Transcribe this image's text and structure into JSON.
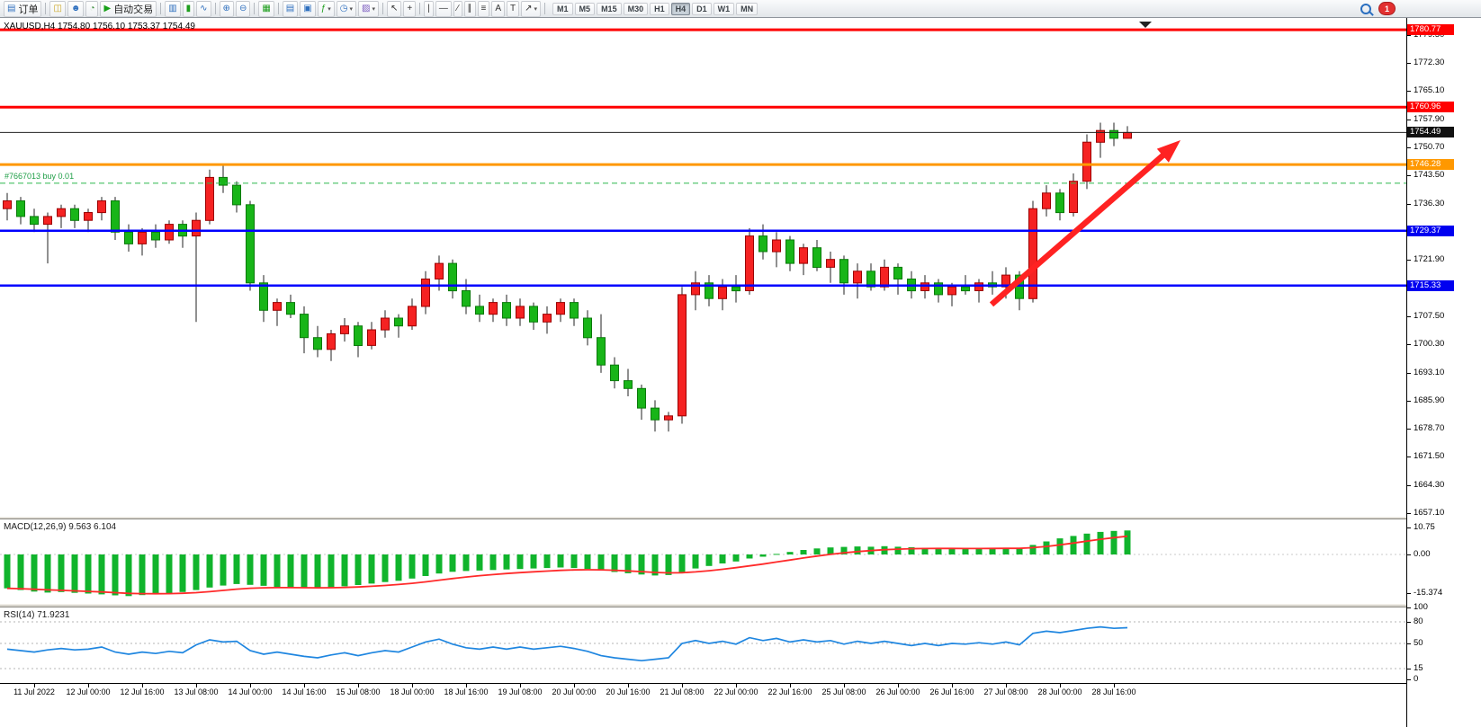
{
  "toolbar": {
    "items": [
      {
        "name": "new-order-button",
        "glyph": "▤",
        "label": "订单",
        "color": "#2e6fbe"
      },
      {
        "sep": true
      },
      {
        "name": "chart-profile-icon",
        "glyph": "◫",
        "color": "#c8a21c"
      },
      {
        "name": "market-watch-icon",
        "glyph": "☻",
        "color": "#2e6fbe"
      },
      {
        "name": "data-window-icon",
        "glyph": "◔",
        "color": "#3f8f3f"
      },
      {
        "name": "autotrading-button",
        "glyph": "▶",
        "label": "自动交易",
        "color": "#18a018"
      },
      {
        "sep": true
      },
      {
        "name": "bar-chart-icon",
        "glyph": "▥",
        "color": "#2e6fbe"
      },
      {
        "name": "candlestick-chart-icon",
        "glyph": "▮",
        "color": "#1e9e1e"
      },
      {
        "name": "line-chart-icon",
        "glyph": "∿",
        "color": "#2e6fbe"
      },
      {
        "sep": true
      },
      {
        "name": "zoom-in-icon",
        "glyph": "⊕",
        "color": "#2e6fbe"
      },
      {
        "name": "zoom-out-icon",
        "glyph": "⊖",
        "color": "#2e6fbe"
      },
      {
        "sep": true
      },
      {
        "name": "tile-windows-icon",
        "glyph": "▦",
        "color": "#1e9e1e"
      },
      {
        "sep": true
      },
      {
        "name": "arrange-charts-icon",
        "glyph": "▤",
        "color": "#2e6fbe"
      },
      {
        "name": "auto-arrange-icon",
        "glyph": "▣",
        "color": "#2e6fbe"
      },
      {
        "name": "indicators-icon",
        "glyph": "ƒ",
        "color": "#1e9e1e",
        "dropdown": true
      },
      {
        "name": "periods-icon",
        "glyph": "◷",
        "color": "#2e6fbe",
        "dropdown": true
      },
      {
        "name": "templates-icon",
        "glyph": "▨",
        "color": "#7a5abf",
        "dropdown": true
      },
      {
        "sep": true
      },
      {
        "name": "cursor-icon",
        "glyph": "↖",
        "color": "#333333"
      },
      {
        "name": "crosshair-icon",
        "glyph": "+",
        "color": "#333333"
      },
      {
        "sep": true
      },
      {
        "name": "vertical-line-icon",
        "glyph": "|",
        "color": "#333333"
      },
      {
        "name": "horizontal-line-icon",
        "glyph": "—",
        "color": "#333333"
      },
      {
        "name": "trendline-icon",
        "glyph": "∕",
        "color": "#333333"
      },
      {
        "name": "channel-icon",
        "glyph": "∥",
        "color": "#333333"
      },
      {
        "name": "fibonacci-icon",
        "glyph": "≡",
        "color": "#333333"
      },
      {
        "name": "text-icon",
        "glyph": "A",
        "color": "#333333"
      },
      {
        "name": "text-label-icon",
        "glyph": "T",
        "color": "#333333"
      },
      {
        "name": "arrows-icon",
        "glyph": "↗",
        "color": "#333333",
        "dropdown": true
      },
      {
        "sep": true
      }
    ],
    "timeframes": {
      "options": [
        "M1",
        "M5",
        "M15",
        "M30",
        "H1",
        "H4",
        "D1",
        "W1",
        "MN"
      ],
      "active": "H4"
    },
    "notification_badge": "1"
  },
  "chart": {
    "symbol_info": "XAUUSD,H4 1754.80 1756.10 1753.37 1754.49",
    "trade_label": "#7667013 buy 0.01",
    "colors": {
      "bull": "#f52222",
      "bull_stroke": "#9b0000",
      "bear": "#18b518",
      "bear_stroke": "#0b7a0b",
      "wick": "#222222",
      "macd_hist": "#10b42c",
      "macd_signal": "#ff2a2a",
      "rsi_line": "#1f86e0",
      "annotation_arrow": "#ff2222"
    },
    "levels": [
      {
        "price": 1780.77,
        "label": "1780.77",
        "color": "#ff0000",
        "width": 3,
        "style": "solid",
        "tag": "#ff0000"
      },
      {
        "price": 1760.96,
        "label": "1760.96",
        "color": "#ff0000",
        "width": 3,
        "style": "solid",
        "tag": "#ff0000"
      },
      {
        "price": 1754.49,
        "label": "1754.49",
        "color": "#222222",
        "width": 1,
        "style": "solid",
        "tag": "#111111"
      },
      {
        "price": 1746.28,
        "label": "1746.28",
        "color": "#ff9800",
        "width": 3,
        "style": "solid",
        "tag": "#ff9800"
      },
      {
        "price": 1741.5,
        "label": "#7667013 buy 0.01",
        "color": "#2db84d",
        "width": 1,
        "style": "dashed",
        "tag": null
      },
      {
        "price": 1729.37,
        "label": "1729.37",
        "color": "#0000ff",
        "width": 2.5,
        "style": "solid",
        "tag": "#0000f0"
      },
      {
        "price": 1715.33,
        "label": "1715.33",
        "color": "#0000ff",
        "width": 2.5,
        "style": "solid",
        "tag": "#0000f0"
      }
    ],
    "price_ticks": [
      1779.5,
      1772.3,
      1765.1,
      1757.9,
      1750.7,
      1743.5,
      1736.3,
      1729.1,
      1721.9,
      1714.7,
      1707.5,
      1700.3,
      1693.1,
      1685.9,
      1678.7,
      1671.5,
      1664.3,
      1657.1
    ],
    "time_ticks": [
      "11 Jul 2022",
      "12 Jul 00:00",
      "12 Jul 16:00",
      "13 Jul 08:00",
      "14 Jul 00:00",
      "14 Jul 16:00",
      "15 Jul 08:00",
      "18 Jul 00:00",
      "18 Jul 16:00",
      "19 Jul 08:00",
      "20 Jul 00:00",
      "20 Jul 16:00",
      "21 Jul 08:00",
      "22 Jul 00:00",
      "22 Jul 16:00",
      "25 Jul 08:00",
      "26 Jul 00:00",
      "26 Jul 16:00",
      "27 Jul 08:00",
      "28 Jul 00:00",
      "28 Jul 16:00"
    ]
  },
  "macd_panel": {
    "label": "MACD(12,26,9) 9.563 6.104",
    "tick_labels": [
      "10.75",
      "0.00",
      "-15.374"
    ],
    "tick_values": [
      10.75,
      0,
      -15.374
    ]
  },
  "rsi_panel": {
    "label": "RSI(14) 71.9231",
    "tick_labels": [
      "100",
      "80",
      "50",
      "15",
      "0"
    ],
    "tick_values": [
      100,
      80,
      50,
      15,
      0
    ],
    "levels": [
      80,
      50,
      15
    ]
  },
  "chart_data": {
    "type": "candlestick",
    "symbol": "XAUUSD",
    "timeframe": "H4",
    "price_range": {
      "top": 1784.0,
      "bottom": 1656.2
    },
    "open_high_low_close": [
      [
        1735,
        1739,
        1732,
        1737
      ],
      [
        1737,
        1738,
        1731,
        1733
      ],
      [
        1733,
        1735,
        1729,
        1731
      ],
      [
        1731,
        1734,
        1721,
        1733
      ],
      [
        1733,
        1736,
        1730,
        1735
      ],
      [
        1735,
        1736,
        1730,
        1732
      ],
      [
        1732,
        1735,
        1729,
        1734
      ],
      [
        1734,
        1738,
        1732,
        1737
      ],
      [
        1737,
        1738,
        1727,
        1729
      ],
      [
        1729,
        1731,
        1724,
        1726
      ],
      [
        1726,
        1730,
        1723,
        1729
      ],
      [
        1729,
        1731,
        1725,
        1727
      ],
      [
        1727,
        1732,
        1726,
        1731
      ],
      [
        1731,
        1732,
        1725,
        1728
      ],
      [
        1728,
        1734,
        1706,
        1732
      ],
      [
        1732,
        1745,
        1731,
        1743
      ],
      [
        1743,
        1746,
        1739,
        1741
      ],
      [
        1741,
        1742,
        1734,
        1736
      ],
      [
        1736,
        1737,
        1714,
        1716
      ],
      [
        1716,
        1718,
        1706,
        1709
      ],
      [
        1709,
        1712,
        1705,
        1711
      ],
      [
        1711,
        1713,
        1707,
        1708
      ],
      [
        1708,
        1710,
        1698,
        1702
      ],
      [
        1702,
        1705,
        1697,
        1699
      ],
      [
        1699,
        1704,
        1696,
        1703
      ],
      [
        1703,
        1707,
        1701,
        1705
      ],
      [
        1705,
        1706,
        1697,
        1700
      ],
      [
        1700,
        1706,
        1699,
        1704
      ],
      [
        1704,
        1709,
        1702,
        1707
      ],
      [
        1707,
        1708,
        1702,
        1705
      ],
      [
        1705,
        1712,
        1704,
        1710
      ],
      [
        1710,
        1719,
        1708,
        1717
      ],
      [
        1717,
        1723,
        1714,
        1721
      ],
      [
        1721,
        1722,
        1712,
        1714
      ],
      [
        1714,
        1717,
        1708,
        1710
      ],
      [
        1710,
        1713,
        1706,
        1708
      ],
      [
        1708,
        1712,
        1706,
        1711
      ],
      [
        1711,
        1713,
        1705,
        1707
      ],
      [
        1707,
        1712,
        1705,
        1710
      ],
      [
        1710,
        1711,
        1704,
        1706
      ],
      [
        1706,
        1710,
        1703,
        1708
      ],
      [
        1708,
        1712,
        1706,
        1711
      ],
      [
        1711,
        1712,
        1705,
        1707
      ],
      [
        1707,
        1709,
        1700,
        1702
      ],
      [
        1702,
        1708,
        1693,
        1695
      ],
      [
        1695,
        1697,
        1689,
        1691
      ],
      [
        1691,
        1694,
        1687,
        1689
      ],
      [
        1689,
        1690,
        1681,
        1684
      ],
      [
        1684,
        1686,
        1678,
        1681
      ],
      [
        1681,
        1683,
        1678,
        1682
      ],
      [
        1682,
        1715,
        1680,
        1713
      ],
      [
        1713,
        1719,
        1709,
        1716
      ],
      [
        1716,
        1718,
        1710,
        1712
      ],
      [
        1712,
        1717,
        1709,
        1715
      ],
      [
        1715,
        1718,
        1711,
        1714
      ],
      [
        1714,
        1730,
        1713,
        1728
      ],
      [
        1728,
        1731,
        1722,
        1724
      ],
      [
        1724,
        1729,
        1720,
        1727
      ],
      [
        1727,
        1728,
        1719,
        1721
      ],
      [
        1721,
        1726,
        1718,
        1725
      ],
      [
        1725,
        1727,
        1719,
        1720
      ],
      [
        1720,
        1724,
        1716,
        1722
      ],
      [
        1722,
        1723,
        1713,
        1716
      ],
      [
        1716,
        1721,
        1712,
        1719
      ],
      [
        1719,
        1721,
        1714,
        1715
      ],
      [
        1715,
        1722,
        1714,
        1720
      ],
      [
        1720,
        1721,
        1713,
        1717
      ],
      [
        1717,
        1719,
        1712,
        1714
      ],
      [
        1714,
        1718,
        1712,
        1716
      ],
      [
        1716,
        1717,
        1711,
        1713
      ],
      [
        1713,
        1716,
        1710,
        1715
      ],
      [
        1715,
        1718,
        1713,
        1714
      ],
      [
        1714,
        1717,
        1711,
        1716
      ],
      [
        1716,
        1719,
        1713,
        1715
      ],
      [
        1715,
        1720,
        1712,
        1718
      ],
      [
        1718,
        1719,
        1709,
        1712
      ],
      [
        1712,
        1737,
        1711,
        1735
      ],
      [
        1735,
        1741,
        1733,
        1739
      ],
      [
        1739,
        1740,
        1732,
        1734
      ],
      [
        1734,
        1744,
        1733,
        1742
      ],
      [
        1742,
        1754,
        1740,
        1752
      ],
      [
        1752,
        1757,
        1748,
        1755
      ],
      [
        1755,
        1757,
        1751,
        1753
      ],
      [
        1753,
        1756.1,
        1753.37,
        1754.49
      ]
    ],
    "indicators": {
      "macd_histogram": [
        -13.5,
        -14.2,
        -14.8,
        -15.2,
        -15.0,
        -15.3,
        -15.6,
        -15.9,
        -16.3,
        -16.6,
        -16.2,
        -15.8,
        -15.4,
        -15.0,
        -14.2,
        -13.2,
        -12.4,
        -11.8,
        -12.1,
        -12.5,
        -12.9,
        -13.2,
        -13.4,
        -13.5,
        -13.2,
        -12.7,
        -12.2,
        -11.6,
        -11.0,
        -10.5,
        -9.6,
        -8.6,
        -7.6,
        -6.9,
        -6.6,
        -6.4,
        -6.2,
        -6.0,
        -5.8,
        -5.6,
        -5.4,
        -5.2,
        -5.4,
        -5.8,
        -6.4,
        -7.0,
        -7.5,
        -8.0,
        -8.4,
        -8.2,
        -7.0,
        -5.6,
        -4.6,
        -3.6,
        -2.8,
        -1.6,
        -0.9,
        0.2,
        1.0,
        1.8,
        2.4,
        2.8,
        3.0,
        3.2,
        3.1,
        3.3,
        3.1,
        2.9,
        2.7,
        2.5,
        2.4,
        2.3,
        2.4,
        2.5,
        2.6,
        2.4,
        3.8,
        5.2,
        6.4,
        7.4,
        8.3,
        9.0,
        9.4,
        9.563
      ],
      "rsi": [
        42,
        40,
        38,
        41,
        43,
        41,
        42,
        45,
        38,
        35,
        38,
        36,
        39,
        37,
        48,
        55,
        52,
        53,
        40,
        35,
        38,
        35,
        32,
        30,
        34,
        37,
        33,
        37,
        40,
        38,
        45,
        52,
        56,
        49,
        44,
        42,
        45,
        42,
        45,
        42,
        44,
        46,
        43,
        39,
        33,
        30,
        28,
        26,
        28,
        30,
        50,
        54,
        50,
        53,
        49,
        58,
        54,
        57,
        52,
        55,
        52,
        54,
        49,
        53,
        50,
        53,
        50,
        47,
        50,
        47,
        50,
        49,
        51,
        49,
        52,
        48,
        64,
        67,
        65,
        68,
        71,
        73,
        71,
        71.92
      ]
    }
  }
}
